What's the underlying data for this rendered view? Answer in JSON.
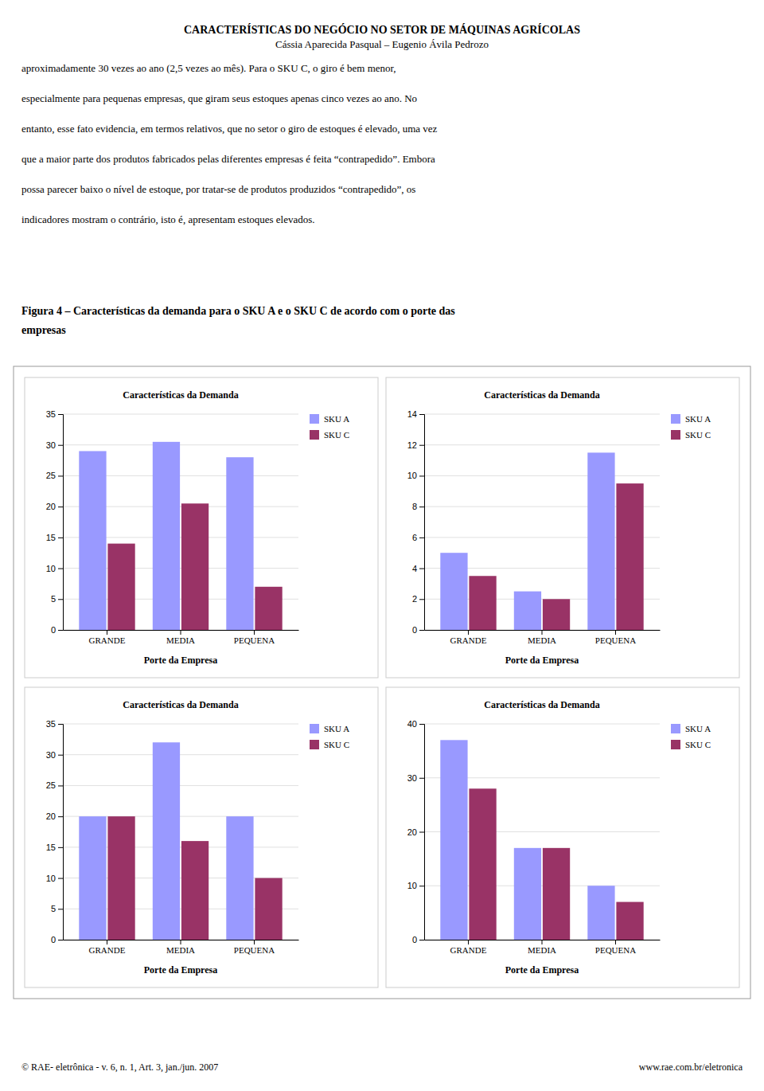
{
  "title": "CARACTERÍSTICAS DO NEGÓCIO NO SETOR DE MÁQUINAS AGRÍCOLAS",
  "subtitle": "Cássia Aparecida Pasqual – Eugenio Ávila Pedrozo",
  "text_lines": [
    "aproximadamente 30 vezes ao ano (2,5 vezes ao mês). Para o SKU C, o giro é bem menor,",
    "especialmente para pequenas empresas, que giram seus estoques apenas cinco vezes ao ano. No",
    "entanto, esse fato evidencia, em termos relativos, que no setor o giro de estoques é elevado, uma vez",
    "que a maior parte dos produtos fabricados pelas diferentes empresas é feita “contrapedido”. Embora",
    "possa parecer baixo o nível de estoque, por tratar-se de produtos produzidos “contrapedido”, os",
    "indicadores mostram o contrário, isto é, apresentam estoques elevados."
  ],
  "caption_lines": [
    "Figura 4 – Características da demanda para o SKU A e o SKU C de acordo com o porte das",
    "empresas"
  ],
  "footer_left": "© RAE- eletrônica - v. 6, n. 1, Art. 3, jan./jun. 2007",
  "footer_right": "www.rae.com.br/eletronica",
  "chart_data": [
    {
      "type": "bar",
      "title": "Características da Demanda",
      "xlabel": "Porte da Empresa",
      "categories": [
        "GRANDE",
        "MEDIA",
        "PEQUENA"
      ],
      "series": [
        {
          "name": "SKU A",
          "color": "#9999FF",
          "values": [
            29,
            30.5,
            28
          ]
        },
        {
          "name": "SKU C",
          "color": "#993366",
          "values": [
            14,
            20.5,
            7
          ]
        }
      ],
      "ylim": [
        0,
        35
      ],
      "yticks": [
        0,
        5,
        10,
        15,
        20,
        25,
        30,
        35
      ],
      "grid": true,
      "legend": "right"
    },
    {
      "type": "bar",
      "title": "Características da Demanda",
      "xlabel": "Porte da Empresa",
      "categories": [
        "GRANDE",
        "MEDIA",
        "PEQUENA"
      ],
      "series": [
        {
          "name": "SKU A",
          "color": "#9999FF",
          "values": [
            5,
            2.5,
            11.5
          ]
        },
        {
          "name": "SKU C",
          "color": "#993366",
          "values": [
            3.5,
            2,
            9.5
          ]
        }
      ],
      "ylim": [
        0,
        14
      ],
      "yticks": [
        0,
        2,
        4,
        6,
        8,
        10,
        12,
        14
      ],
      "grid": true,
      "legend": "right"
    },
    {
      "type": "bar",
      "title": "Características da Demanda",
      "xlabel": "Porte da Empresa",
      "categories": [
        "GRANDE",
        "MEDIA",
        "PEQUENA"
      ],
      "series": [
        {
          "name": "SKU A",
          "color": "#9999FF",
          "values": [
            20,
            32,
            20
          ]
        },
        {
          "name": "SKU C",
          "color": "#993366",
          "values": [
            20,
            16,
            10
          ]
        }
      ],
      "ylim": [
        0,
        35
      ],
      "yticks": [
        0,
        5,
        10,
        15,
        20,
        25,
        30,
        35
      ],
      "grid": true,
      "legend": "right"
    },
    {
      "type": "bar",
      "title": "Características da Demanda",
      "xlabel": "Porte da Empresa",
      "categories": [
        "GRANDE",
        "MEDIA",
        "PEQUENA"
      ],
      "series": [
        {
          "name": "SKU A",
          "color": "#9999FF",
          "values": [
            37,
            17,
            10
          ]
        },
        {
          "name": "SKU C",
          "color": "#993366",
          "values": [
            28,
            17,
            7
          ]
        }
      ],
      "ylim": [
        0,
        40
      ],
      "yticks": [
        0,
        10,
        20,
        30,
        40
      ],
      "grid": true,
      "legend": "right"
    }
  ]
}
